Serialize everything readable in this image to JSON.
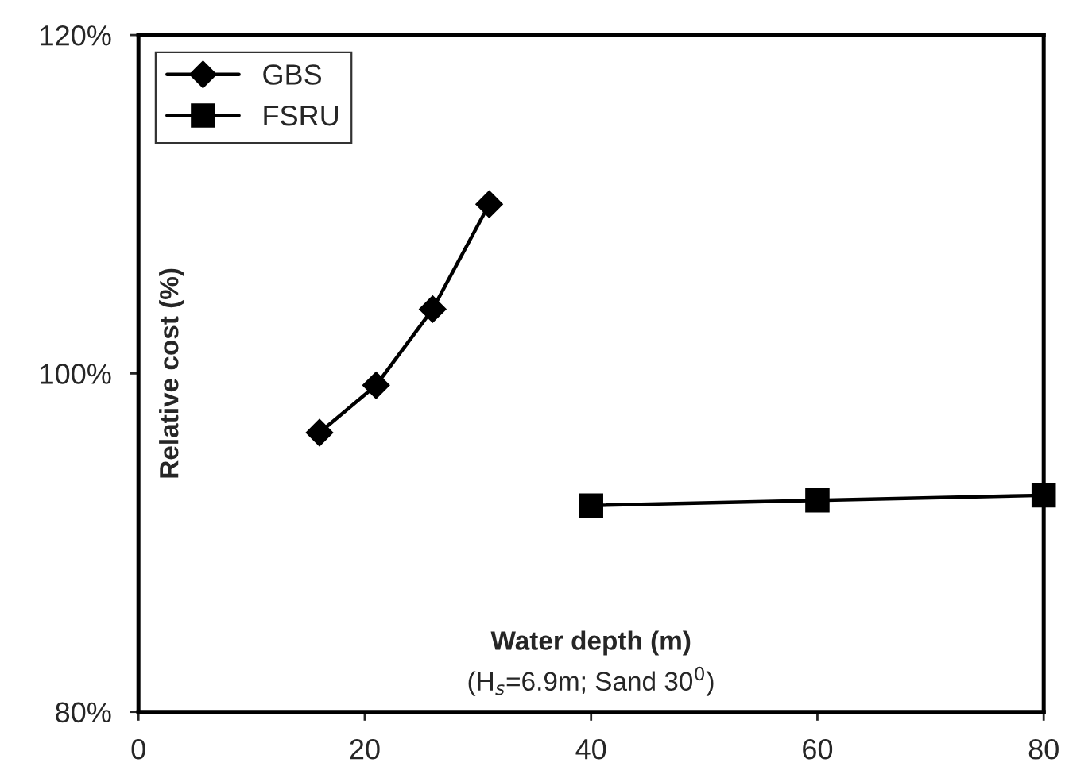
{
  "chart_data": {
    "type": "line",
    "xlabel": "Water depth (m)",
    "ylabel": "Relative cost (%)",
    "annotations": [
      "(H$_{s}$=6.9m; Sand 30$^{0}$)"
    ],
    "xlim": [
      0,
      80
    ],
    "xticks": [
      0,
      20,
      40,
      60,
      80
    ],
    "ylim": [
      80,
      120
    ],
    "yticks": [
      {
        "value": 80,
        "label": "80%"
      },
      {
        "value": 100,
        "label": "100%"
      },
      {
        "value": 120,
        "label": "120%"
      }
    ],
    "grid": false,
    "legend": "top left",
    "line_style": "solid",
    "series": [
      {
        "name": "GBS",
        "color": "#000000",
        "marker": "diamond",
        "x": [
          16,
          21,
          26,
          31
        ],
        "values": [
          96.5,
          99.3,
          103.8,
          110.0
        ]
      },
      {
        "name": "FSRU",
        "color": "#000000",
        "marker": "square",
        "x": [
          40,
          60,
          80
        ],
        "values": [
          92.2,
          92.5,
          92.8
        ]
      }
    ]
  }
}
